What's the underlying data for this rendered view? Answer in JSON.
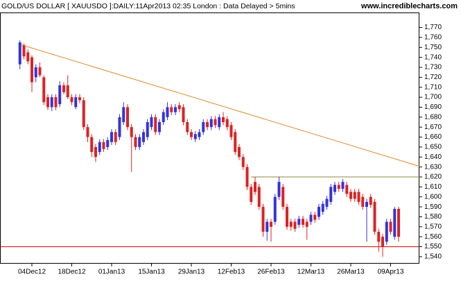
{
  "chart_data": {
    "type": "candlestick",
    "title": "GOLD/US DOLLAR [ XAUUSDO ]:DAILY:11Apr2013 02:35 London : Data Delayed > 5mins",
    "source": "www.incrediblecharts.com",
    "categories": [
      null,
      null,
      null,
      "04Dec12",
      null,
      null,
      null,
      null,
      null,
      null,
      null,
      null,
      null,
      "18Dec12",
      null,
      null,
      null,
      null,
      null,
      null,
      null,
      null,
      null,
      "01Jan13",
      null,
      null,
      null,
      null,
      null,
      null,
      null,
      null,
      null,
      "15Jan13",
      null,
      null,
      null,
      null,
      null,
      null,
      null,
      null,
      null,
      "29Jan13",
      null,
      null,
      null,
      null,
      null,
      null,
      null,
      null,
      null,
      "12Feb13",
      null,
      null,
      null,
      null,
      null,
      null,
      null,
      null,
      null,
      "26Feb13",
      null,
      null,
      null,
      null,
      null,
      null,
      null,
      null,
      null,
      "12Mar13",
      null,
      null,
      null,
      null,
      null,
      null,
      null,
      null,
      null,
      "26Mar13",
      null,
      null,
      null,
      null,
      null,
      null,
      null,
      null,
      null,
      "09Apr13",
      null,
      null
    ],
    "open": [
      1733,
      1752,
      1745,
      1740,
      1720,
      1730,
      1720,
      1700,
      1690,
      1700,
      1693,
      1712,
      1712,
      1700,
      1690,
      1700,
      1697,
      1670,
      1660,
      1650,
      1645,
      1655,
      1650,
      1655,
      1665,
      1660,
      1675,
      1690,
      1670,
      1660,
      1650,
      1655,
      1660,
      1670,
      1680,
      1665,
      1675,
      1680,
      1690,
      1685,
      1692,
      1690,
      1675,
      1665,
      1658,
      1660,
      1665,
      1675,
      1670,
      1678,
      1670,
      1680,
      1678,
      1672,
      1665,
      1650,
      1640,
      1630,
      1610,
      1615,
      1610,
      1590,
      1565,
      1575,
      1575,
      1600,
      1610,
      1590,
      1575,
      1575,
      1572,
      1578,
      1575,
      1575,
      1582,
      1580,
      1585,
      1590,
      1595,
      1605,
      1612,
      1608,
      1612,
      1605,
      1605,
      1605,
      1600,
      1590,
      1600,
      1595,
      1565,
      1560,
      1555,
      1575,
      1560,
      1588
    ],
    "high": [
      1757,
      1754,
      1748,
      1742,
      1733,
      1735,
      1722,
      1703,
      1703,
      1703,
      1716,
      1715,
      1722,
      1703,
      1703,
      1703,
      1700,
      1673,
      1663,
      1653,
      1658,
      1658,
      1660,
      1668,
      1668,
      1683,
      1695,
      1693,
      1673,
      1663,
      1663,
      1668,
      1678,
      1683,
      1683,
      1678,
      1688,
      1695,
      1693,
      1693,
      1695,
      1693,
      1678,
      1668,
      1666,
      1668,
      1678,
      1678,
      1681,
      1681,
      1683,
      1685,
      1681,
      1675,
      1668,
      1653,
      1643,
      1633,
      1613,
      1620,
      1613,
      1593,
      1578,
      1578,
      1603,
      1620,
      1613,
      1593,
      1578,
      1578,
      1581,
      1581,
      1578,
      1585,
      1585,
      1593,
      1596,
      1601,
      1613,
      1615,
      1615,
      1618,
      1615,
      1608,
      1608,
      1608,
      1603,
      1598,
      1603,
      1598,
      1568,
      1563,
      1578,
      1578,
      1590,
      1590
    ],
    "low": [
      1728,
      1738,
      1733,
      1705,
      1715,
      1720,
      1692,
      1687,
      1686,
      1687,
      1690,
      1703,
      1698,
      1692,
      1688,
      1694,
      1667,
      1655,
      1640,
      1635,
      1642,
      1645,
      1647,
      1652,
      1652,
      1657,
      1672,
      1667,
      1625,
      1647,
      1647,
      1652,
      1657,
      1667,
      1662,
      1662,
      1672,
      1677,
      1682,
      1682,
      1685,
      1672,
      1662,
      1657,
      1655,
      1657,
      1662,
      1667,
      1667,
      1669,
      1667,
      1672,
      1667,
      1657,
      1642,
      1637,
      1627,
      1607,
      1592,
      1602,
      1587,
      1560,
      1556,
      1555,
      1572,
      1597,
      1587,
      1567,
      1566,
      1565,
      1569,
      1569,
      1557,
      1572,
      1574,
      1577,
      1582,
      1587,
      1592,
      1602,
      1605,
      1605,
      1600,
      1595,
      1595,
      1592,
      1587,
      1555,
      1589,
      1562,
      1545,
      1540,
      1552,
      1562,
      1557,
      1555
    ],
    "close": [
      1755,
      1741,
      1736,
      1715,
      1730,
      1722,
      1695,
      1690,
      1700,
      1690,
      1712,
      1705,
      1700,
      1695,
      1700,
      1697,
      1670,
      1660,
      1645,
      1640,
      1655,
      1648,
      1657,
      1665,
      1655,
      1680,
      1690,
      1670,
      1660,
      1650,
      1660,
      1665,
      1675,
      1680,
      1665,
      1675,
      1685,
      1690,
      1685,
      1690,
      1688,
      1675,
      1665,
      1660,
      1663,
      1665,
      1675,
      1670,
      1678,
      1672,
      1680,
      1675,
      1670,
      1660,
      1645,
      1640,
      1630,
      1610,
      1595,
      1605,
      1590,
      1565,
      1575,
      1570,
      1600,
      1615,
      1590,
      1570,
      1570,
      1568,
      1578,
      1572,
      1570,
      1582,
      1577,
      1590,
      1593,
      1598,
      1610,
      1612,
      1608,
      1615,
      1603,
      1598,
      1598,
      1595,
      1590,
      1595,
      1592,
      1565,
      1555,
      1550,
      1575,
      1565,
      1588,
      1560
    ],
    "up_color": "#3333dd",
    "down_color": "#dd2222",
    "ylim": [
      1533,
      1785
    ],
    "yticks": [
      {
        "value": 1540,
        "label": "1,540"
      },
      {
        "value": 1550,
        "label": "1,550"
      },
      {
        "value": 1560,
        "label": "1,560"
      },
      {
        "value": 1570,
        "label": "1,570"
      },
      {
        "value": 1580,
        "label": "1,580"
      },
      {
        "value": 1590,
        "label": "1,590"
      },
      {
        "value": 1600,
        "label": "1,600"
      },
      {
        "value": 1610,
        "label": "1,610"
      },
      {
        "value": 1620,
        "label": "1,620"
      },
      {
        "value": 1630,
        "label": "1,630"
      },
      {
        "value": 1640,
        "label": "1,640"
      },
      {
        "value": 1650,
        "label": "1,650"
      },
      {
        "value": 1660,
        "label": "1,660"
      },
      {
        "value": 1670,
        "label": "1,670"
      },
      {
        "value": 1680,
        "label": "1,680"
      },
      {
        "value": 1690,
        "label": "1,690"
      },
      {
        "value": 1700,
        "label": "1,700"
      },
      {
        "value": 1710,
        "label": "1,710"
      },
      {
        "value": 1720,
        "label": "1,720"
      },
      {
        "value": 1730,
        "label": "1,730"
      },
      {
        "value": 1740,
        "label": "1,740"
      },
      {
        "value": 1750,
        "label": "1,750"
      },
      {
        "value": 1760,
        "label": "1,760"
      },
      {
        "value": 1770,
        "label": "1,770"
      }
    ],
    "trendlines": [
      {
        "color": "#e08a2c",
        "x": [
          0,
          102
        ],
        "y": [
          1753,
          1628.5
        ]
      },
      {
        "color": "#8a8a3a",
        "x": [
          58,
          102
        ],
        "y": [
          1620,
          1620
        ]
      },
      {
        "color": "#cc0000",
        "x": [
          -6,
          102
        ],
        "y": [
          1550,
          1550
        ]
      }
    ]
  }
}
